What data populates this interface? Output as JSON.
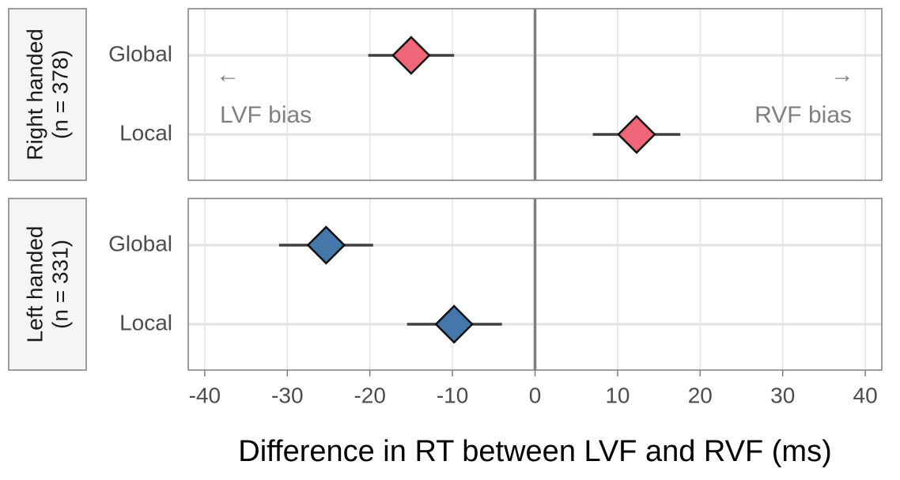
{
  "chart_data": {
    "type": "forest",
    "xlabel": "Difference in RT between LVF and RVF (ms)",
    "xlim": [
      -42,
      42
    ],
    "xticks": [
      -40,
      -30,
      -20,
      -10,
      0,
      10,
      20,
      30,
      40
    ],
    "xtick_labels": [
      "-40",
      "-30",
      "-20",
      "-10",
      "0",
      "10",
      "20",
      "30",
      "40"
    ],
    "categories": [
      "Global",
      "Local"
    ],
    "reference_line": 0,
    "grid": true,
    "annotations": {
      "left_arrow": "←",
      "right_arrow": "→",
      "left_label": "LVF bias",
      "right_label": "RVF bias"
    },
    "panels": [
      {
        "strip_line1": "Right handed",
        "strip_line2": "(n = 378)",
        "color": "#EE6677",
        "show_annotations": true,
        "points": [
          {
            "category": "Global",
            "value": -15.0,
            "ci_low": -20.2,
            "ci_high": -9.8
          },
          {
            "category": "Local",
            "value": 12.3,
            "ci_low": 7.0,
            "ci_high": 17.6
          }
        ]
      },
      {
        "strip_line1": "Left handed",
        "strip_line2": "(n = 331)",
        "color": "#4477AA",
        "show_annotations": false,
        "points": [
          {
            "category": "Global",
            "value": -25.3,
            "ci_low": -31.0,
            "ci_high": -19.6
          },
          {
            "category": "Local",
            "value": -9.8,
            "ci_low": -15.5,
            "ci_high": -4.0
          }
        ]
      }
    ]
  }
}
